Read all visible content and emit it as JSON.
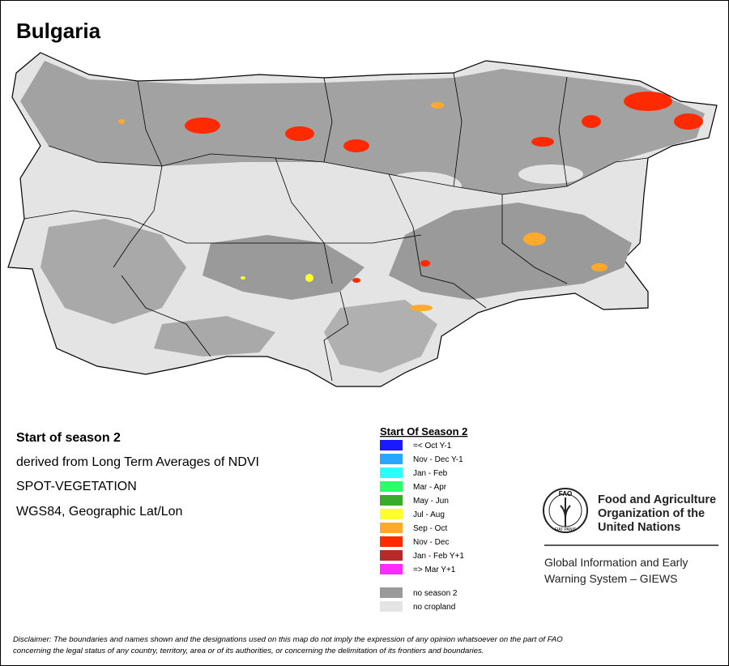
{
  "title": "Bulgaria",
  "info": [
    "Start of season 2",
    "derived from Long Term Averages of NDVI",
    "SPOT-VEGETATION",
    "WGS84, Geographic Lat/Lon"
  ],
  "legend": {
    "title": "Start Of Season 2",
    "items": [
      {
        "label": "=< Oct Y-1",
        "color": "#1a1aff"
      },
      {
        "label": "Nov - Dec Y-1",
        "color": "#2aa6ff"
      },
      {
        "label": "Jan - Feb",
        "color": "#2affff"
      },
      {
        "label": "Mar - Apr",
        "color": "#2aff6a"
      },
      {
        "label": "May - Jun",
        "color": "#3aaa2a"
      },
      {
        "label": "Jul - Aug",
        "color": "#ffff2a"
      },
      {
        "label": "Sep - Oct",
        "color": "#ffaa2a"
      },
      {
        "label": "Nov - Dec",
        "color": "#ff2a00"
      },
      {
        "label": "Jan - Feb Y+1",
        "color": "#b82a2a"
      },
      {
        "label": "=> Mar Y+1",
        "color": "#ff2aff"
      }
    ],
    "extra": [
      {
        "label": "no season 2",
        "color": "#9a9a9a"
      },
      {
        "label": "no cropland",
        "color": "#e4e4e4"
      }
    ]
  },
  "logo": {
    "text": "FAO",
    "motto": "FIAT PANIS"
  },
  "org": [
    "Food and Agriculture",
    "Organization of the",
    "United Nations"
  ],
  "system": [
    "Global Information and Early",
    "Warning System – GIEWS"
  ],
  "disclaimer": [
    "Disclaimer: The boundaries and names shown and the designations used on this map do not imply the expression of any opinion whatsoever on the part of FAO",
    "concerning the legal status of any country, territory, area or of its authorities, or concerning the delimitation of its frontiers and boundaries."
  ]
}
